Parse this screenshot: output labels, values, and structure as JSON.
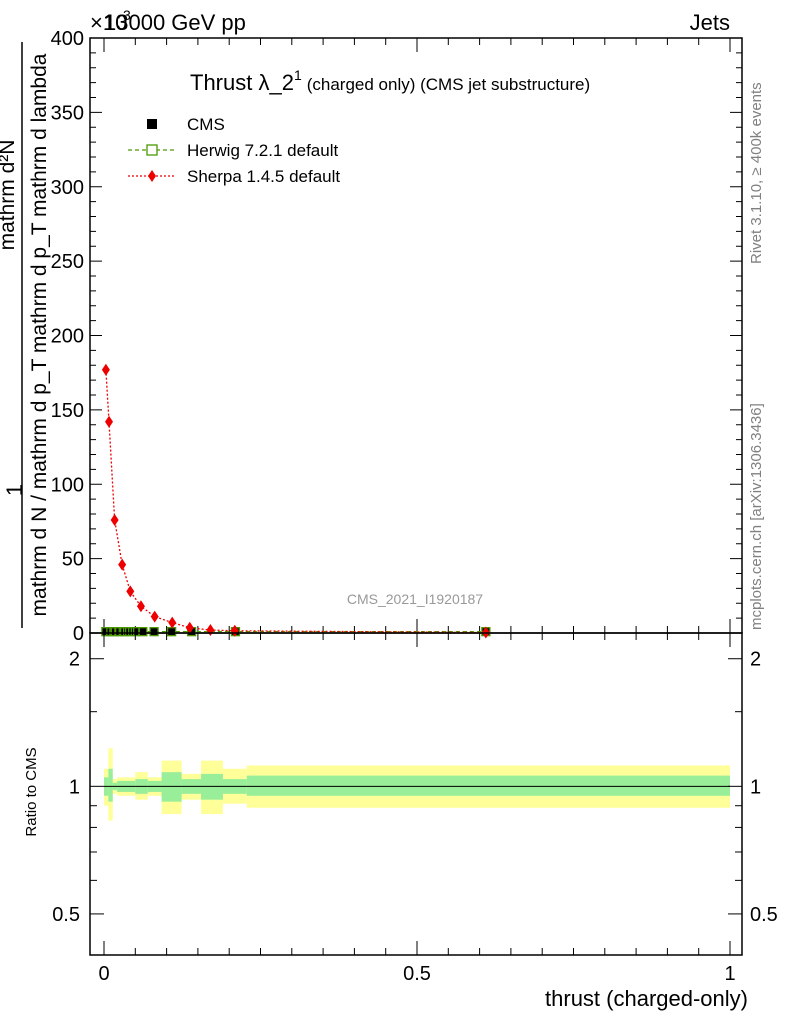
{
  "header": {
    "left": "13000 GeV pp",
    "right": "Jets",
    "exponent": "×10",
    "exponent_power": "3"
  },
  "side_labels": {
    "rivet": "Rivet 3.1.10, ≥ 400k events",
    "mcplots": "mcplots.cern.ch [arXiv:1306.3436]"
  },
  "watermark": "CMS_2021_I1920187",
  "chart_data": [
    {
      "type": "line",
      "title": "Thrust λ_2",
      "title_sup": "1",
      "subtitle": "(charged only) (CMS jet substructure)",
      "ylabel_top": "1",
      "ylabel_num": "mathrm d²N",
      "ylabel_den": "mathrm d N / mathrm d p_T mathrm d p_T mathrm d lambda",
      "xlim": [
        0,
        1
      ],
      "ylim": [
        0,
        400
      ],
      "ytick_values": [
        0,
        50,
        100,
        150,
        200,
        250,
        300,
        350,
        400
      ],
      "ytick_labels": [
        "0",
        "50",
        "100",
        "150",
        "200",
        "250",
        "300",
        "350",
        "400"
      ],
      "legend": [
        {
          "name": "CMS",
          "color": "#000000",
          "marker": "square"
        },
        {
          "name": "Herwig 7.2.1 default",
          "color": "#4b9900",
          "marker": "open-square"
        },
        {
          "name": "Sherpa 1.4.5 default",
          "color": "#ee0000",
          "marker": "diamond"
        }
      ],
      "series": [
        {
          "name": "CMS",
          "x": [
            0.003,
            0.011,
            0.018,
            0.025,
            0.033,
            0.041,
            0.05,
            0.062,
            0.08,
            0.108,
            0.14,
            0.21,
            0.61
          ],
          "y": [
            0.9,
            0.9,
            0.9,
            0.9,
            0.9,
            0.9,
            0.9,
            0.9,
            0.9,
            0.9,
            0.9,
            0.9,
            0.9
          ]
        },
        {
          "name": "Herwig 7.2.1 default",
          "x": [
            0.003,
            0.011,
            0.018,
            0.025,
            0.033,
            0.041,
            0.05,
            0.062,
            0.08,
            0.108,
            0.14,
            0.21,
            0.61
          ],
          "y": [
            0.9,
            0.9,
            0.9,
            0.9,
            0.9,
            0.9,
            0.9,
            0.9,
            0.9,
            0.9,
            0.9,
            0.9,
            0.9
          ]
        },
        {
          "name": "Sherpa 1.4.5 default",
          "x": [
            0.003,
            0.008,
            0.017,
            0.029,
            0.042,
            0.059,
            0.081,
            0.109,
            0.137,
            0.17,
            0.209,
            0.61
          ],
          "y": [
            177,
            142,
            76,
            46,
            28,
            18,
            11,
            7,
            3.5,
            2,
            1.5,
            0.3
          ]
        }
      ]
    },
    {
      "type": "area",
      "ylabel": "Ratio to CMS",
      "xlabel": "thrust (charged-only)",
      "xlim": [
        0,
        1
      ],
      "ylim": [
        0.4,
        2.3
      ],
      "log_scale_y": true,
      "ytick_values": [
        0.5,
        1,
        2
      ],
      "ytick_labels": [
        "0.5",
        "1",
        "2"
      ],
      "xtick_values": [
        0,
        0.5,
        1
      ],
      "xtick_labels": [
        "0",
        "0.5",
        "1"
      ],
      "band_colors": {
        "outer": "#ffff99",
        "inner": "#99ee99"
      },
      "bands": [
        {
          "x0": 0.0,
          "x1": 0.007,
          "inner": [
            0.95,
            1.05
          ],
          "outer": [
            0.9,
            1.1
          ]
        },
        {
          "x0": 0.007,
          "x1": 0.014,
          "inner": [
            0.92,
            1.1
          ],
          "outer": [
            0.83,
            1.23
          ]
        },
        {
          "x0": 0.014,
          "x1": 0.021,
          "inner": [
            0.98,
            1.02
          ],
          "outer": [
            0.96,
            1.04
          ]
        },
        {
          "x0": 0.021,
          "x1": 0.05,
          "inner": [
            0.97,
            1.03
          ],
          "outer": [
            0.95,
            1.05
          ]
        },
        {
          "x0": 0.05,
          "x1": 0.07,
          "inner": [
            0.96,
            1.04
          ],
          "outer": [
            0.93,
            1.08
          ]
        },
        {
          "x0": 0.07,
          "x1": 0.092,
          "inner": [
            0.97,
            1.03
          ],
          "outer": [
            0.95,
            1.05
          ]
        },
        {
          "x0": 0.092,
          "x1": 0.124,
          "inner": [
            0.92,
            1.08
          ],
          "outer": [
            0.86,
            1.15
          ]
        },
        {
          "x0": 0.124,
          "x1": 0.155,
          "inner": [
            0.96,
            1.04
          ],
          "outer": [
            0.93,
            1.07
          ]
        },
        {
          "x0": 0.155,
          "x1": 0.19,
          "inner": [
            0.93,
            1.07
          ],
          "outer": [
            0.86,
            1.15
          ]
        },
        {
          "x0": 0.19,
          "x1": 0.228,
          "inner": [
            0.96,
            1.04
          ],
          "outer": [
            0.91,
            1.1
          ]
        },
        {
          "x0": 0.228,
          "x1": 1.0,
          "inner": [
            0.95,
            1.06
          ],
          "outer": [
            0.89,
            1.12
          ]
        }
      ]
    }
  ]
}
